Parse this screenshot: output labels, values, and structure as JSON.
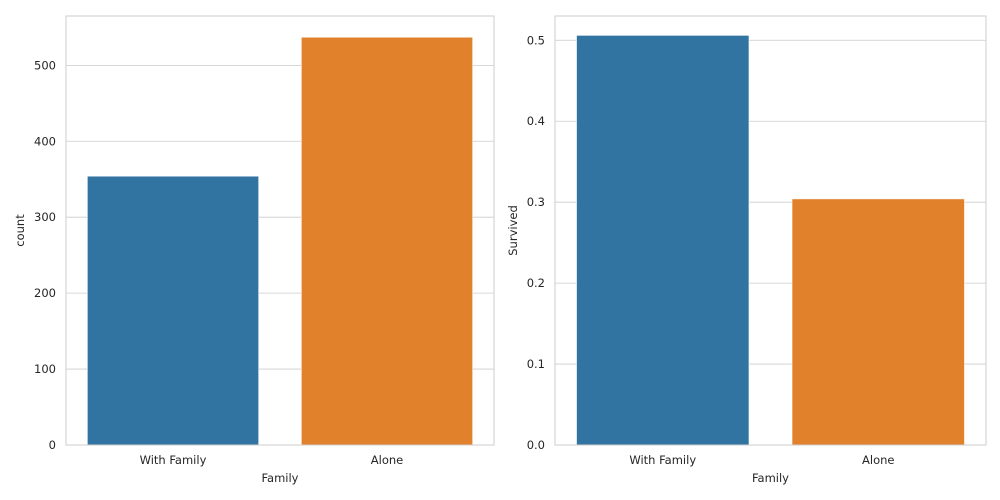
{
  "chart_data": [
    {
      "type": "bar",
      "categories": [
        "With Family",
        "Alone"
      ],
      "values": [
        354,
        537
      ],
      "xlabel": "Family",
      "ylabel": "count",
      "ylim": [
        0,
        565
      ],
      "yticks": [
        0,
        100,
        200,
        300,
        400,
        500
      ],
      "ytick_labels": [
        "0",
        "100",
        "200",
        "300",
        "400",
        "500"
      ],
      "grid": true,
      "colors": [
        "#3274a1",
        "#e1812c"
      ]
    },
    {
      "type": "bar",
      "categories": [
        "With Family",
        "Alone"
      ],
      "values": [
        0.506,
        0.304
      ],
      "xlabel": "Family",
      "ylabel": "Survived",
      "ylim": [
        0,
        0.53
      ],
      "yticks": [
        0,
        0.1,
        0.2,
        0.3,
        0.4,
        0.5
      ],
      "ytick_labels": [
        "0.0",
        "0.1",
        "0.2",
        "0.3",
        "0.4",
        "0.5"
      ],
      "grid": true,
      "colors": [
        "#3274a1",
        "#e1812c"
      ]
    }
  ]
}
